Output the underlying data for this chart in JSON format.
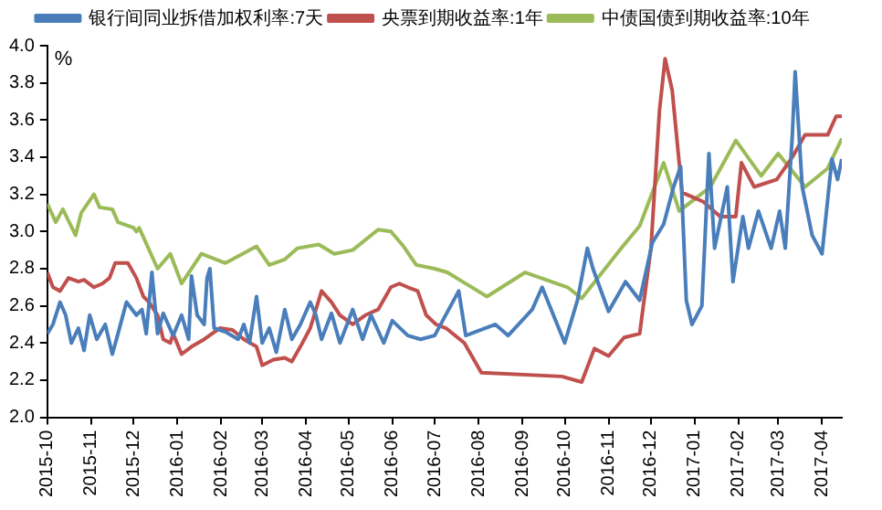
{
  "chart_data": {
    "type": "line",
    "ylabel": "%",
    "legend": "top",
    "grid": false,
    "marker": "none",
    "line_style": "solid",
    "xlim": [
      "2015-10",
      "2017-04-15"
    ],
    "xticks": [
      "2015-10",
      "2015-11",
      "2015-12",
      "2016-01",
      "2016-02",
      "2016-03",
      "2016-04",
      "2016-05",
      "2016-06",
      "2016-07",
      "2016-08",
      "2016-09",
      "2016-10",
      "2016-11",
      "2016-12",
      "2017-01",
      "2017-02",
      "2017-03",
      "2017-04"
    ],
    "ylim": [
      2,
      4
    ],
    "yticks": [
      {
        "value": 2,
        "label": "2.0"
      },
      {
        "value": 2.2,
        "label": "2.2"
      },
      {
        "value": 2.4,
        "label": "2.4"
      },
      {
        "value": 2.6,
        "label": "2.6"
      },
      {
        "value": 2.8,
        "label": "2.8"
      },
      {
        "value": 3,
        "label": "3.0"
      },
      {
        "value": 3.2,
        "label": "3.2"
      },
      {
        "value": 3.4,
        "label": "3.4"
      },
      {
        "value": 3.6,
        "label": "3.6"
      },
      {
        "value": 3.8,
        "label": "3.8"
      },
      {
        "value": 4,
        "label": "4.0"
      }
    ],
    "series": [
      {
        "name": "银行间同业拆借加权利率:7天",
        "color": "#4a7ebb",
        "x": [
          "2015-10-01",
          "2015-10-05",
          "2015-10-10",
          "2015-10-14",
          "2015-10-18",
          "2015-10-23",
          "2015-10-27",
          "2015-10-31",
          "2015-11-05",
          "2015-11-11",
          "2015-11-16",
          "2015-11-20",
          "2015-11-26",
          "2015-12-03",
          "2015-12-07",
          "2015-12-10",
          "2015-12-14",
          "2015-12-18",
          "2015-12-22",
          "2015-12-29",
          "2016-01-04",
          "2016-01-09",
          "2016-01-11",
          "2016-01-15",
          "2016-01-20",
          "2016-01-22",
          "2016-01-24",
          "2016-01-27",
          "2016-02-04",
          "2016-02-13",
          "2016-02-17",
          "2016-02-21",
          "2016-02-26",
          "2016-03-01",
          "2016-03-06",
          "2016-03-11",
          "2016-03-17",
          "2016-03-22",
          "2016-03-28",
          "2016-04-04",
          "2016-04-08",
          "2016-04-12",
          "2016-04-19",
          "2016-04-25",
          "2016-05-04",
          "2016-05-11",
          "2016-05-17",
          "2016-05-26",
          "2016-06-01",
          "2016-06-12",
          "2016-06-21",
          "2016-07-01",
          "2016-07-18",
          "2016-07-23",
          "2016-08-13",
          "2016-08-22",
          "2016-09-08",
          "2016-09-15",
          "2016-10-01",
          "2016-10-10",
          "2016-10-17",
          "2016-10-21",
          "2016-11-01",
          "2016-11-13",
          "2016-11-23",
          "2016-12-02",
          "2016-12-10",
          "2016-12-17",
          "2016-12-22",
          "2016-12-26",
          "2016-12-30",
          "2017-01-06",
          "2017-01-11",
          "2017-01-15",
          "2017-01-24",
          "2017-01-28",
          "2017-02-04",
          "2017-02-08",
          "2017-02-15",
          "2017-02-24",
          "2017-03-02",
          "2017-03-06",
          "2017-03-11",
          "2017-03-13",
          "2017-03-18",
          "2017-03-25",
          "2017-04-01",
          "2017-04-08",
          "2017-04-12",
          "2017-04-15"
        ],
        "values": [
          2.45,
          2.5,
          2.62,
          2.55,
          2.4,
          2.48,
          2.36,
          2.55,
          2.42,
          2.5,
          2.34,
          2.45,
          2.62,
          2.55,
          2.58,
          2.45,
          2.78,
          2.45,
          2.56,
          2.44,
          2.55,
          2.42,
          2.76,
          2.55,
          2.5,
          2.75,
          2.8,
          2.48,
          2.46,
          2.42,
          2.5,
          2.4,
          2.65,
          2.4,
          2.48,
          2.35,
          2.58,
          2.42,
          2.5,
          2.62,
          2.55,
          2.42,
          2.56,
          2.4,
          2.58,
          2.42,
          2.55,
          2.4,
          2.52,
          2.44,
          2.42,
          2.44,
          2.68,
          2.44,
          2.5,
          2.44,
          2.58,
          2.7,
          2.4,
          2.63,
          2.91,
          2.8,
          2.57,
          2.73,
          2.63,
          2.94,
          3.04,
          3.24,
          3.35,
          2.63,
          2.5,
          2.6,
          3.42,
          2.91,
          3.24,
          2.73,
          3.08,
          2.91,
          3.11,
          2.91,
          3.11,
          2.91,
          3.52,
          3.86,
          3.24,
          2.98,
          2.88,
          3.39,
          3.28,
          3.39
        ]
      },
      {
        "name": "央票到期收益率:1年",
        "color": "#c0504d",
        "x": [
          "2015-10-01",
          "2015-10-05",
          "2015-10-10",
          "2015-10-16",
          "2015-10-23",
          "2015-10-27",
          "2015-11-03",
          "2015-11-09",
          "2015-11-14",
          "2015-11-18",
          "2015-11-27",
          "2015-12-03",
          "2015-12-08",
          "2015-12-12",
          "2015-12-18",
          "2015-12-22",
          "2015-12-27",
          "2015-12-29",
          "2016-01-04",
          "2016-01-11",
          "2016-01-20",
          "2016-01-31",
          "2016-02-09",
          "2016-02-17",
          "2016-02-26",
          "2016-03-01",
          "2016-03-09",
          "2016-03-17",
          "2016-03-22",
          "2016-03-28",
          "2016-04-04",
          "2016-04-12",
          "2016-04-19",
          "2016-04-25",
          "2016-05-04",
          "2016-05-13",
          "2016-05-22",
          "2016-05-31",
          "2016-06-06",
          "2016-06-12",
          "2016-06-19",
          "2016-06-25",
          "2016-07-02",
          "2016-07-09",
          "2016-07-22",
          "2016-08-03",
          "2016-09-29",
          "2016-10-13",
          "2016-10-22",
          "2016-11-01",
          "2016-11-12",
          "2016-11-23",
          "2016-12-01",
          "2016-12-07",
          "2016-12-11",
          "2016-12-16",
          "2016-12-23",
          "2017-01-07",
          "2017-01-19",
          "2017-01-30",
          "2017-02-03",
          "2017-02-12",
          "2017-02-28",
          "2017-03-11",
          "2017-03-20",
          "2017-04-05",
          "2017-04-11",
          "2017-04-15"
        ],
        "values": [
          2.78,
          2.7,
          2.68,
          2.75,
          2.73,
          2.74,
          2.7,
          2.72,
          2.75,
          2.83,
          2.83,
          2.75,
          2.65,
          2.62,
          2.55,
          2.42,
          2.4,
          2.45,
          2.34,
          2.38,
          2.42,
          2.48,
          2.47,
          2.42,
          2.38,
          2.28,
          2.31,
          2.32,
          2.3,
          2.38,
          2.48,
          2.68,
          2.62,
          2.55,
          2.5,
          2.55,
          2.58,
          2.7,
          2.72,
          2.7,
          2.68,
          2.55,
          2.5,
          2.48,
          2.4,
          2.24,
          2.22,
          2.19,
          2.37,
          2.33,
          2.43,
          2.45,
          2.91,
          3.65,
          3.93,
          3.76,
          3.21,
          3.16,
          3.08,
          3.08,
          3.37,
          3.24,
          3.28,
          3.4,
          3.52,
          3.52,
          3.62,
          3.62
        ]
      },
      {
        "name": "中债国债到期收益率:10年",
        "color": "#9bbb59",
        "x": [
          "2015-10-01",
          "2015-10-07",
          "2015-10-12",
          "2015-10-21",
          "2015-10-25",
          "2015-11-03",
          "2015-11-07",
          "2015-11-16",
          "2015-11-20",
          "2015-12-01",
          "2015-12-03",
          "2015-12-05",
          "2015-12-18",
          "2015-12-27",
          "2016-01-04",
          "2016-01-18",
          "2016-02-04",
          "2016-02-26",
          "2016-03-06",
          "2016-03-17",
          "2016-03-26",
          "2016-04-10",
          "2016-04-21",
          "2016-05-04",
          "2016-05-22",
          "2016-05-31",
          "2016-06-09",
          "2016-06-18",
          "2016-07-01",
          "2016-07-10",
          "2016-08-07",
          "2016-09-03",
          "2016-10-03",
          "2016-10-13",
          "2016-11-10",
          "2016-11-23",
          "2016-12-10",
          "2016-12-21",
          "2017-01-12",
          "2017-01-30",
          "2017-02-17",
          "2017-03-01",
          "2017-03-20",
          "2017-04-05",
          "2017-04-15"
        ],
        "values": [
          3.15,
          3.05,
          3.12,
          2.98,
          3.1,
          3.2,
          3.13,
          3.12,
          3.05,
          3.02,
          3.0,
          3.02,
          2.8,
          2.88,
          2.72,
          2.88,
          2.83,
          2.92,
          2.82,
          2.85,
          2.91,
          2.93,
          2.88,
          2.9,
          3.01,
          3.0,
          2.92,
          2.82,
          2.8,
          2.78,
          2.65,
          2.78,
          2.7,
          2.64,
          2.91,
          3.03,
          3.37,
          3.11,
          3.24,
          3.49,
          3.3,
          3.42,
          3.24,
          3.34,
          3.5
        ]
      }
    ]
  }
}
